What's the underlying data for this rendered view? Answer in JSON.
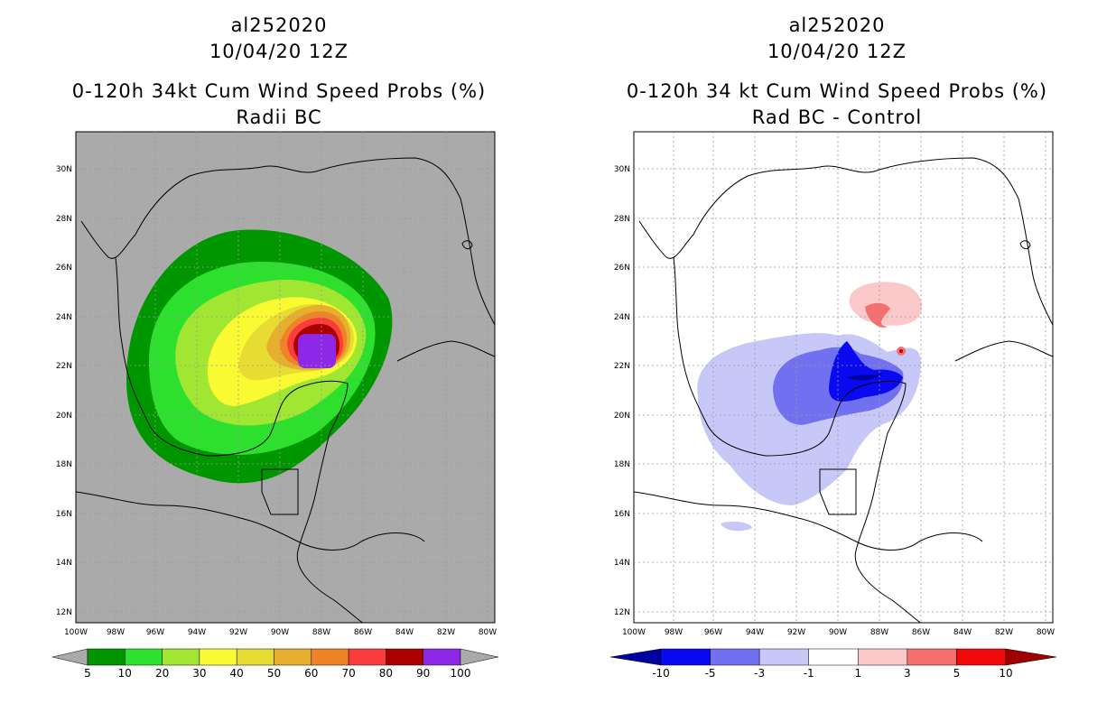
{
  "left": {
    "storm_id": "al252020",
    "datetime": "10/04/20 12Z",
    "product": "0-120h 34kt Cum Wind Speed Probs (%)",
    "subtitle": "Radii BC",
    "colorbar_labels": [
      "5",
      "10",
      "20",
      "30",
      "40",
      "50",
      "60",
      "70",
      "80",
      "90",
      "100"
    ],
    "colorbar_colors": [
      "#009600",
      "#2ee02e",
      "#a0e632",
      "#fafa32",
      "#e6dc32",
      "#e6af2d",
      "#f08228",
      "#fa3c3c",
      "#aa0000",
      "#8c28e6"
    ]
  },
  "right": {
    "storm_id": "al252020",
    "datetime": "10/04/20 12Z",
    "product": "0-120h 34 kt Cum Wind Speed Probs (%)",
    "subtitle": "Rad BC - Control",
    "colorbar_labels": [
      "-10",
      "-5",
      "-3",
      "-1",
      "1",
      "3",
      "5",
      "10"
    ],
    "colorbar_colors": [
      "#0000a0",
      "#0a0af0",
      "#7070f0",
      "#c8c8f8",
      "#ffffff",
      "#fac8c8",
      "#f47070",
      "#f00a0a",
      "#a00000"
    ]
  },
  "axes": {
    "lat_labels": [
      "30N",
      "28N",
      "26N",
      "24N",
      "22N",
      "20N",
      "18N",
      "16N",
      "14N",
      "12N"
    ],
    "lon_labels": [
      "100W",
      "98W",
      "96W",
      "94W",
      "92W",
      "90W",
      "88W",
      "86W",
      "84W",
      "82W",
      "80W"
    ]
  },
  "colors": {
    "land_gray": "#aaaaaa",
    "coastline": "#000000",
    "grid": "#9a9a9a"
  }
}
